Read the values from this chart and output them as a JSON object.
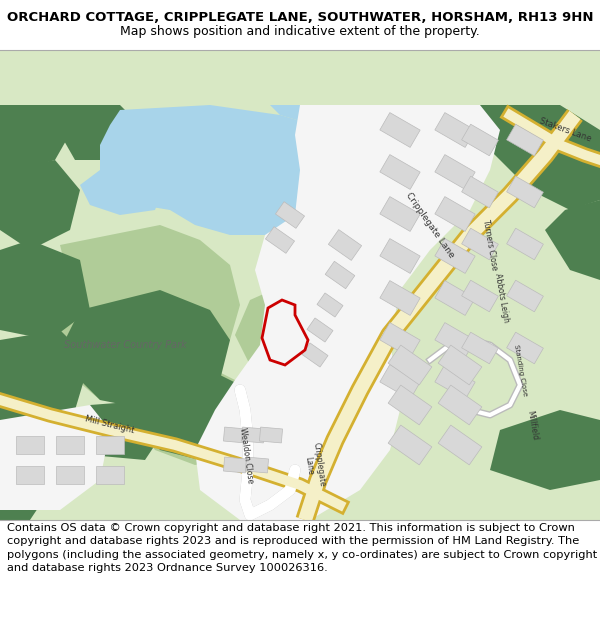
{
  "title_line1": "ORCHARD COTTAGE, CRIPPLEGATE LANE, SOUTHWATER, HORSHAM, RH13 9HN",
  "title_line2": "Map shows position and indicative extent of the property.",
  "footer_text": "Contains OS data © Crown copyright and database right 2021. This information is subject to Crown copyright and database rights 2023 and is reproduced with the permission of HM Land Registry. The polygons (including the associated geometry, namely x, y co-ordinates) are subject to Crown copyright and database rights 2023 Ordnance Survey 100026316.",
  "title_fontsize": 9.5,
  "subtitle_fontsize": 9.0,
  "footer_fontsize": 8.2,
  "bg_color": "#d8e8c4",
  "water_color": "#a8d4ea",
  "road_fill": "#f5f0c8",
  "road_border": "#d4b030",
  "building_color": "#d8d8d8",
  "building_edge": "#bbbbbb",
  "dark_green": "#4e8050",
  "light_green": "#b0cc98",
  "plot_color": "#cc0000",
  "plot_lw": 2.0,
  "white_area": "#f5f5f5",
  "header_bg": "#ffffff",
  "footer_bg": "#ffffff"
}
